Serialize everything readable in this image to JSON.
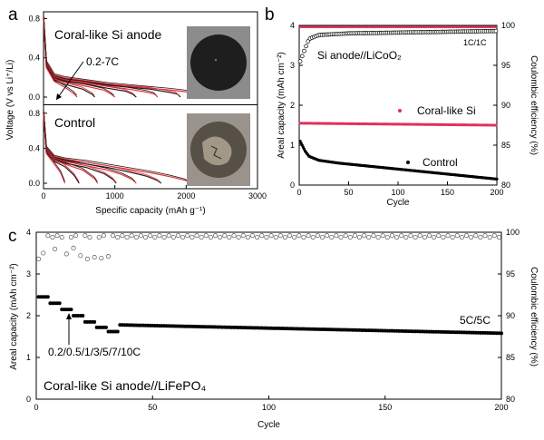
{
  "chart_data": [
    {
      "panel": "a",
      "type": "line",
      "xlabel": "Specific capacity (mAh g⁻¹)",
      "ylabel": "Voltage (V vs Li⁺/Li)",
      "xlim": [
        0,
        3000
      ],
      "ylim": [
        0,
        0.85
      ],
      "xticks": [
        0,
        1000,
        2000,
        3000
      ],
      "yticks": [
        0.0,
        0.4,
        0.8
      ],
      "colors": {
        "red": "#e0303c",
        "dark": "#2a1a1a"
      },
      "subplots": [
        {
          "label": "Coral-like Si anode",
          "annotation": "0.2-7C",
          "image_desc": "black-disc",
          "series": [
            {
              "rate_index": 1,
              "x": [
                0,
                40,
                150,
                300,
                600,
                900,
                1200,
                1500,
                1800,
                2050,
                2180,
                2250
              ],
              "y": [
                0.8,
                0.35,
                0.22,
                0.19,
                0.16,
                0.13,
                0.11,
                0.09,
                0.07,
                0.05,
                0.03,
                0.0
              ]
            },
            {
              "rate_index": 2,
              "x": [
                0,
                40,
                150,
                300,
                600,
                900,
                1200,
                1500,
                1750,
                1880,
                1920
              ],
              "y": [
                0.8,
                0.35,
                0.21,
                0.18,
                0.15,
                0.12,
                0.1,
                0.08,
                0.05,
                0.03,
                0.0
              ]
            },
            {
              "rate_index": 3,
              "x": [
                0,
                40,
                150,
                300,
                600,
                900,
                1200,
                1450,
                1560,
                1600
              ],
              "y": [
                0.8,
                0.34,
                0.2,
                0.17,
                0.14,
                0.11,
                0.08,
                0.05,
                0.03,
                0.0
              ]
            },
            {
              "rate_index": 4,
              "x": [
                0,
                40,
                150,
                300,
                600,
                900,
                1150,
                1250,
                1300
              ],
              "y": [
                0.8,
                0.33,
                0.19,
                0.16,
                0.13,
                0.09,
                0.06,
                0.03,
                0.0
              ]
            },
            {
              "rate_index": 5,
              "x": [
                0,
                40,
                150,
                300,
                600,
                850,
                950,
                1000
              ],
              "y": [
                0.8,
                0.32,
                0.18,
                0.15,
                0.11,
                0.07,
                0.03,
                0.0
              ]
            },
            {
              "rate_index": 6,
              "x": [
                0,
                40,
                150,
                300,
                550,
                680,
                720
              ],
              "y": [
                0.8,
                0.31,
                0.17,
                0.13,
                0.08,
                0.03,
                0.0
              ]
            },
            {
              "rate_index": 7,
              "x": [
                0,
                40,
                150,
                300,
                420,
                470
              ],
              "y": [
                0.8,
                0.3,
                0.16,
                0.1,
                0.04,
                0.0
              ]
            }
          ]
        },
        {
          "label": "Control",
          "annotation": "",
          "image_desc": "cracked-gray-disc",
          "series": [
            {
              "rate_index": 1,
              "x": [
                0,
                40,
                150,
                300,
                600,
                900,
                1200,
                1500,
                1800,
                2000,
                2070
              ],
              "y": [
                0.8,
                0.4,
                0.3,
                0.27,
                0.24,
                0.2,
                0.16,
                0.12,
                0.07,
                0.03,
                0.0
              ]
            },
            {
              "rate_index": 2,
              "x": [
                0,
                40,
                150,
                300,
                600,
                900,
                1200,
                1450,
                1600,
                1650
              ],
              "y": [
                0.8,
                0.39,
                0.29,
                0.26,
                0.22,
                0.18,
                0.13,
                0.08,
                0.03,
                0.0
              ]
            },
            {
              "rate_index": 3,
              "x": [
                0,
                40,
                150,
                300,
                600,
                900,
                1100,
                1250,
                1300
              ],
              "y": [
                0.8,
                0.38,
                0.28,
                0.25,
                0.2,
                0.15,
                0.1,
                0.04,
                0.0
              ]
            },
            {
              "rate_index": 4,
              "x": [
                0,
                40,
                150,
                300,
                600,
                850,
                980,
                1020
              ],
              "y": [
                0.8,
                0.37,
                0.27,
                0.23,
                0.18,
                0.11,
                0.04,
                0.0
              ]
            },
            {
              "rate_index": 5,
              "x": [
                0,
                40,
                150,
                300,
                550,
                720,
                760
              ],
              "y": [
                0.8,
                0.36,
                0.26,
                0.22,
                0.15,
                0.05,
                0.0
              ]
            },
            {
              "rate_index": 6,
              "x": [
                0,
                40,
                150,
                300,
                430,
                500
              ],
              "y": [
                0.8,
                0.35,
                0.25,
                0.19,
                0.09,
                0.0
              ]
            },
            {
              "rate_index": 7,
              "x": [
                0,
                40,
                150,
                240,
                300
              ],
              "y": [
                0.8,
                0.34,
                0.22,
                0.12,
                0.0
              ]
            }
          ]
        }
      ]
    },
    {
      "panel": "b",
      "type": "scatter",
      "xlabel": "Cycle",
      "ylabel": "Areal capacity (mAh cm⁻²)",
      "ylabel_right": "Coulombic efficiency (%)",
      "xlim": [
        0,
        200
      ],
      "ylim": [
        0,
        4
      ],
      "ylim_right": [
        80,
        100
      ],
      "xticks": [
        0,
        50,
        100,
        150,
        200
      ],
      "yticks": [
        0,
        1,
        2,
        3,
        4
      ],
      "yticks_right": [
        80,
        85,
        90,
        95,
        100
      ],
      "annotations": {
        "title": "Si anode//LiCoO₂",
        "rate": "1C/1C"
      },
      "series": [
        {
          "name": "Coral-like Si",
          "color": "#e0305a",
          "capacity_start": 1.55,
          "capacity_end": 1.5
        },
        {
          "name": "Control",
          "color": "#000000",
          "capacity_points": [
            [
              1,
              1.1
            ],
            [
              3,
              1.0
            ],
            [
              6,
              0.85
            ],
            [
              10,
              0.72
            ],
            [
              20,
              0.62
            ],
            [
              40,
              0.55
            ],
            [
              80,
              0.45
            ],
            [
              120,
              0.35
            ],
            [
              160,
              0.25
            ],
            [
              200,
              0.15
            ]
          ]
        },
        {
          "name": "Coulombic efficiency (Coral-like Si)",
          "color": "#e0305a",
          "ce_value": 99.8
        },
        {
          "name": "Coulombic efficiency (Control)",
          "color": "#000000",
          "ce_points": [
            [
              1,
              95.5
            ],
            [
              5,
              96.8
            ],
            [
              10,
              98.3
            ],
            [
              20,
              98.8
            ],
            [
              50,
              99.0
            ],
            [
              100,
              99.1
            ],
            [
              150,
              99.2
            ],
            [
              200,
              99.3
            ]
          ]
        }
      ]
    },
    {
      "panel": "c",
      "type": "scatter",
      "xlabel": "Cycle",
      "ylabel": "Areal capacity (mAh cm⁻²)",
      "ylabel_right": "Coulombic efficiency (%)",
      "xlim": [
        0,
        200
      ],
      "ylim": [
        0,
        4
      ],
      "ylim_right": [
        80,
        100
      ],
      "xticks": [
        0,
        50,
        100,
        150,
        200
      ],
      "yticks": [
        0,
        1,
        2,
        3,
        4
      ],
      "yticks_right": [
        80,
        85,
        90,
        95,
        100
      ],
      "annotations": {
        "title": "Coral-like Si anode//LiFePO₄",
        "rates": "0.2/0.5/1/3/5/7/10C",
        "long_rate": "5C/5C"
      },
      "series": [
        {
          "name": "Areal capacity",
          "color": "#000000",
          "steps": [
            {
              "from": 1,
              "to": 5,
              "value": 2.45
            },
            {
              "from": 6,
              "to": 10,
              "value": 2.3
            },
            {
              "from": 11,
              "to": 15,
              "value": 2.15
            },
            {
              "from": 16,
              "to": 20,
              "value": 2.0
            },
            {
              "from": 21,
              "to": 25,
              "value": 1.85
            },
            {
              "from": 26,
              "to": 30,
              "value": 1.72
            },
            {
              "from": 31,
              "to": 35,
              "value": 1.62
            }
          ],
          "long_start": 1.78,
          "long_end": 1.58
        },
        {
          "name": "Coulombic efficiency",
          "color": "#555555",
          "ce_outliers": [
            [
              1,
              96.8
            ],
            [
              3,
              97.5
            ],
            [
              8,
              98.0
            ],
            [
              13,
              97.4
            ],
            [
              16,
              98.1
            ],
            [
              19,
              97.2
            ],
            [
              22,
              96.8
            ],
            [
              25,
              97.0
            ],
            [
              28,
              96.9
            ],
            [
              31,
              97.1
            ]
          ],
          "ce_value": 99.5
        }
      ]
    }
  ]
}
